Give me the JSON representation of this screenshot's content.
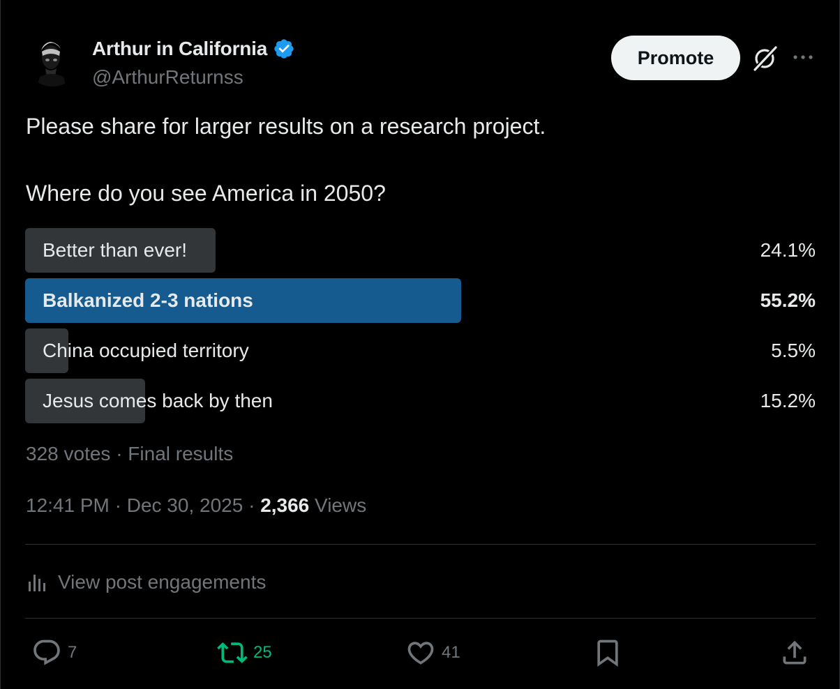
{
  "author": {
    "name": "Arthur in California",
    "handle": "@ArthurReturnss",
    "verified": true
  },
  "header": {
    "promote_label": "Promote",
    "icons": [
      "grok-icon",
      "more-icon"
    ]
  },
  "post": {
    "line1": "Please share for larger results on a research project.",
    "line2": "Where do you see America in 2050?"
  },
  "poll": {
    "options": [
      {
        "label": "Better than ever!",
        "percent_text": "24.1%",
        "percent": 24.1,
        "winner": false
      },
      {
        "label": "Balkanized 2-3 nations",
        "percent_text": "55.2%",
        "percent": 55.2,
        "winner": true
      },
      {
        "label": "China occupied territory",
        "percent_text": "5.5%",
        "percent": 5.5,
        "winner": false
      },
      {
        "label": "Jesus comes back by then",
        "percent_text": "15.2%",
        "percent": 15.2,
        "winner": false
      }
    ],
    "summary": "328 votes · Final results"
  },
  "meta": {
    "time": "12:41 PM · Dec 30, 2025 · ",
    "views_count": "2,366",
    "views_label": " Views"
  },
  "engagements_label": "View post engagements",
  "actions": {
    "replies": "7",
    "reposts": "25",
    "likes": "41"
  },
  "colors": {
    "background": "#000000",
    "winner_bar": "#155b8f",
    "option_bar": "#333639",
    "verified": "#1d9bf0",
    "repost_active": "#00ba7c",
    "muted_text": "#71767b"
  }
}
